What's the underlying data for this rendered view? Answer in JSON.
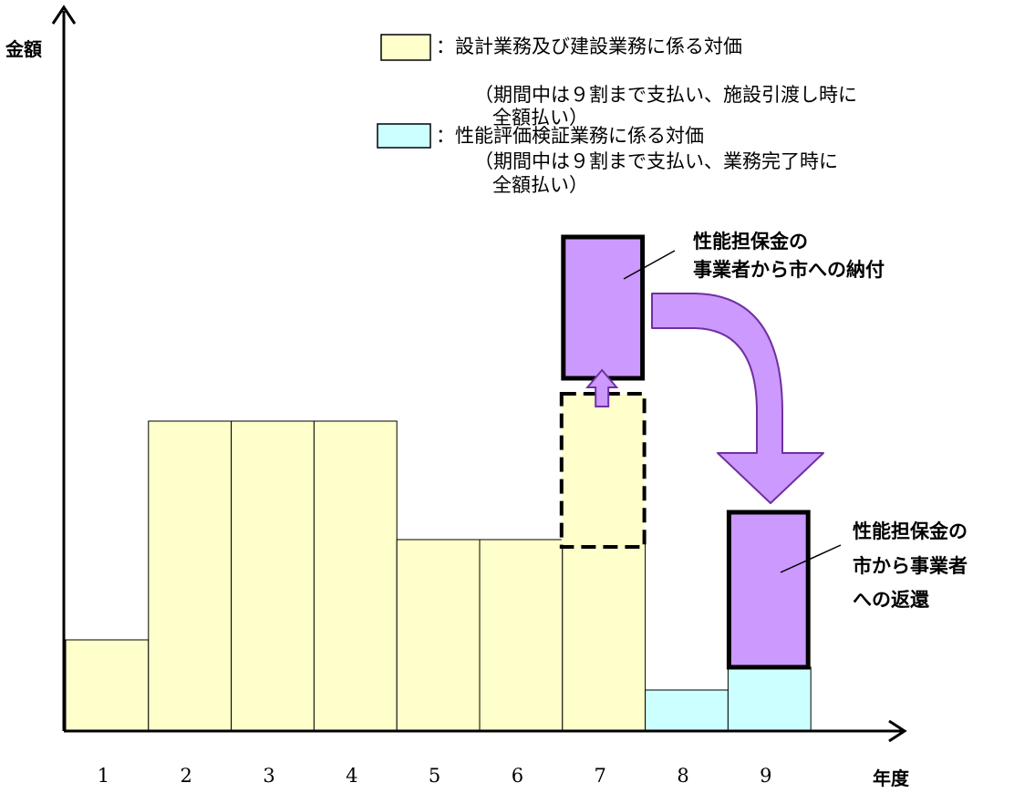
{
  "axes": {
    "y_label": "金額",
    "x_label": "年度",
    "ticks": [
      "1",
      "2",
      "3",
      "4",
      "5",
      "6",
      "7",
      "8",
      "9"
    ]
  },
  "legend": {
    "design_build": {
      "color": "#ffffcc",
      "label": "：設計業務及び建設業務に係る対価",
      "note_line1": "（期間中は９割まで支払い、施設引渡し時に",
      "note_line2": "全額払い）"
    },
    "evaluation": {
      "color": "#ccffff",
      "label": "：性能評価検証業務に係る対価",
      "note_line1": "（期間中は９割まで支払い、業務完了時に",
      "note_line2": "全額払い）"
    }
  },
  "callouts": {
    "deposit_line1": "性能担保金の",
    "deposit_line2": "事業者から市への納付",
    "refund_line1": "性能担保金の",
    "refund_line2": "市から事業者",
    "refund_line3": "への返還"
  },
  "colors": {
    "guarantee": "#cc99ff",
    "guarantee_stroke": "#000000",
    "arrow_stroke": "#7030a0"
  },
  "chart_data": {
    "type": "bar",
    "categories": [
      "1",
      "2",
      "3",
      "4",
      "5",
      "6",
      "7",
      "8",
      "9"
    ],
    "series": [
      {
        "name": "：設計業務及び建設業務に係る対価",
        "values": [
          1.0,
          3.4,
          3.4,
          3.4,
          2.1,
          2.1,
          2.1,
          0,
          0
        ]
      },
      {
        "name": "：性能評価検証業務に係る対価",
        "values": [
          0,
          0,
          0,
          0,
          0,
          0,
          0,
          0.45,
          0.7
        ]
      }
    ],
    "annotations": {
      "deposit_year": "7",
      "deposit_dashed_extra": 1.6,
      "deposit_guarantee": 1.55,
      "refund_year": "9",
      "refund_guarantee": 1.7
    },
    "xlabel": "年度",
    "ylabel": "金額",
    "ylim": [
      0,
      7.5
    ],
    "grid": false
  }
}
